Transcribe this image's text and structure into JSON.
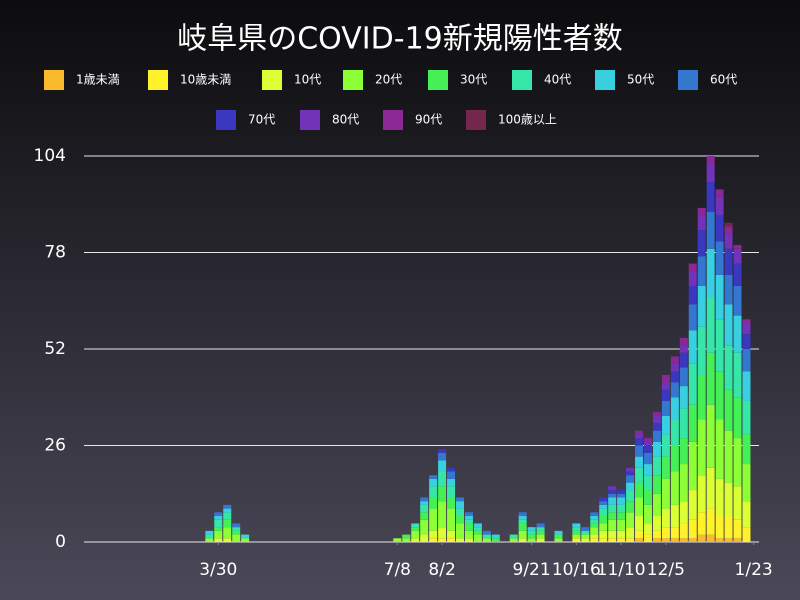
{
  "chart_data": {
    "type": "stacked_bar",
    "title": "岐阜県のCOVID-19新規陽性者数",
    "x": [
      -5,
      0,
      5,
      10,
      15,
      100,
      105,
      110,
      115,
      120,
      125,
      130,
      135,
      140,
      145,
      150,
      155,
      165,
      170,
      175,
      180,
      190,
      200,
      205,
      210,
      215,
      220,
      225,
      230,
      235,
      240,
      245,
      250,
      255,
      260,
      265,
      270,
      275,
      280,
      285,
      290,
      295
    ],
    "xlim": [
      -75,
      302
    ],
    "xticks": [
      {
        "value": 0,
        "label": "3/30"
      },
      {
        "value": 100,
        "label": "7/8"
      },
      {
        "value": 125,
        "label": "8/2"
      },
      {
        "value": 175,
        "label": "9/21"
      },
      {
        "value": 200,
        "label": "10/16"
      },
      {
        "value": 225,
        "label": "11/10"
      },
      {
        "value": 250,
        "label": "12/5"
      },
      {
        "value": 299,
        "label": "1/23"
      }
    ],
    "ylim": [
      0,
      104
    ],
    "yticks": [
      0,
      26,
      52,
      78,
      104
    ],
    "grid": true,
    "series": [
      {
        "name": "1歳未満",
        "color": "#fbba2c",
        "values": [
          0,
          0,
          0,
          0,
          0,
          0,
          0,
          0,
          0,
          0,
          0,
          0,
          0,
          0,
          0,
          0,
          0,
          0,
          0,
          0,
          0,
          0,
          0,
          0,
          0,
          0,
          0,
          0,
          0,
          1,
          0,
          1,
          1,
          1,
          1,
          1,
          2,
          2,
          1,
          1,
          1,
          0
        ]
      },
      {
        "name": "10歳未満",
        "color": "#fff22a",
        "values": [
          0,
          0,
          0,
          0,
          0,
          0,
          0,
          0,
          0,
          1,
          1,
          1,
          0,
          0,
          0,
          0,
          0,
          0,
          0,
          0,
          0,
          0,
          1,
          0,
          1,
          1,
          1,
          1,
          1,
          2,
          2,
          2,
          3,
          3,
          4,
          5,
          6,
          7,
          6,
          6,
          5,
          4
        ]
      },
      {
        "name": "10代",
        "color": "#dbff33",
        "values": [
          0,
          1,
          1,
          0,
          0,
          0,
          0,
          1,
          2,
          2,
          3,
          2,
          1,
          1,
          0,
          0,
          0,
          0,
          1,
          0,
          1,
          0,
          0,
          1,
          1,
          2,
          2,
          2,
          3,
          4,
          3,
          4,
          5,
          6,
          6,
          8,
          10,
          11,
          10,
          9,
          9,
          7
        ]
      },
      {
        "name": "20代",
        "color": "#8cff36",
        "values": [
          1,
          2,
          3,
          2,
          1,
          1,
          1,
          2,
          4,
          6,
          7,
          6,
          4,
          2,
          2,
          1,
          0,
          1,
          2,
          1,
          1,
          1,
          1,
          1,
          2,
          2,
          3,
          3,
          4,
          5,
          5,
          6,
          8,
          9,
          10,
          13,
          15,
          17,
          16,
          14,
          13,
          10
        ]
      },
      {
        "name": "30代",
        "color": "#44f055",
        "values": [
          0,
          1,
          2,
          1,
          0,
          0,
          1,
          1,
          2,
          3,
          4,
          3,
          2,
          2,
          1,
          0,
          1,
          0,
          2,
          1,
          1,
          1,
          1,
          0,
          1,
          2,
          2,
          2,
          3,
          4,
          4,
          5,
          6,
          7,
          7,
          10,
          12,
          14,
          13,
          11,
          11,
          8
        ]
      },
      {
        "name": "40代",
        "color": "#36e6a8",
        "values": [
          1,
          2,
          2,
          1,
          0,
          0,
          0,
          1,
          2,
          3,
          4,
          3,
          2,
          1,
          1,
          1,
          0,
          1,
          1,
          1,
          1,
          0,
          1,
          1,
          1,
          2,
          2,
          2,
          3,
          4,
          4,
          5,
          6,
          7,
          8,
          11,
          13,
          15,
          14,
          12,
          12,
          9
        ]
      },
      {
        "name": "50代",
        "color": "#38cfe0",
        "values": [
          1,
          1,
          1,
          0,
          1,
          0,
          0,
          0,
          1,
          2,
          3,
          2,
          2,
          1,
          1,
          0,
          1,
          0,
          1,
          1,
          0,
          1,
          1,
          0,
          1,
          1,
          2,
          2,
          2,
          3,
          3,
          4,
          5,
          6,
          6,
          9,
          11,
          13,
          12,
          11,
          10,
          8
        ]
      },
      {
        "name": "60代",
        "color": "#3477d0",
        "values": [
          0,
          1,
          1,
          1,
          0,
          0,
          0,
          0,
          1,
          1,
          2,
          2,
          1,
          1,
          0,
          1,
          0,
          0,
          1,
          0,
          1,
          0,
          0,
          1,
          1,
          1,
          1,
          1,
          2,
          3,
          3,
          3,
          4,
          4,
          5,
          7,
          8,
          10,
          9,
          8,
          8,
          6
        ]
      },
      {
        "name": "70代",
        "color": "#3a37c0",
        "values": [
          0,
          0,
          0,
          0,
          0,
          0,
          0,
          0,
          0,
          0,
          1,
          1,
          0,
          0,
          0,
          0,
          0,
          0,
          0,
          0,
          0,
          0,
          0,
          0,
          0,
          1,
          1,
          1,
          1,
          2,
          2,
          2,
          3,
          3,
          4,
          5,
          7,
          8,
          7,
          7,
          6,
          4
        ]
      },
      {
        "name": "80代",
        "color": "#7233b8",
        "values": [
          0,
          0,
          0,
          0,
          0,
          0,
          0,
          0,
          0,
          0,
          0,
          0,
          0,
          0,
          0,
          0,
          0,
          0,
          0,
          0,
          0,
          0,
          0,
          0,
          0,
          0,
          1,
          0,
          1,
          1,
          1,
          2,
          2,
          2,
          2,
          4,
          4,
          5,
          5,
          4,
          4,
          3
        ]
      },
      {
        "name": "90代",
        "color": "#8c2896",
        "values": [
          0,
          0,
          0,
          0,
          0,
          0,
          0,
          0,
          0,
          0,
          0,
          0,
          0,
          0,
          0,
          0,
          0,
          0,
          0,
          0,
          0,
          0,
          0,
          0,
          0,
          0,
          0,
          0,
          0,
          1,
          1,
          1,
          2,
          2,
          2,
          2,
          2,
          2,
          2,
          2,
          1,
          1
        ]
      },
      {
        "name": "100歳以上",
        "color": "#74264c",
        "values": [
          0,
          0,
          0,
          0,
          0,
          0,
          0,
          0,
          0,
          0,
          0,
          0,
          0,
          0,
          0,
          0,
          0,
          0,
          0,
          0,
          0,
          0,
          0,
          0,
          0,
          0,
          0,
          0,
          0,
          0,
          0,
          0,
          0,
          0,
          0,
          0,
          0,
          0,
          0,
          1,
          0,
          0
        ]
      }
    ]
  }
}
